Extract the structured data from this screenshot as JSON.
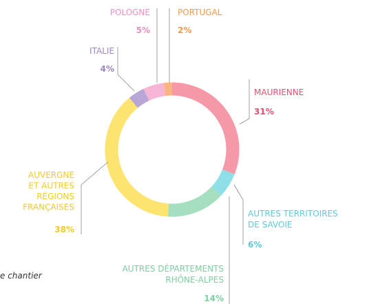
{
  "chart_data": {
    "type": "donut",
    "categories": [
      [
        "MAURIENNE"
      ],
      [
        "AUTRES TERRITOIRES",
        "DE SAVOIE"
      ],
      [
        "AUTRES DÉPARTEMENTS",
        "RHÔNE-ALPES"
      ],
      [
        "AUVERGNE",
        "ET AUTRES",
        "RÉGIONS",
        "FRANÇAISES"
      ],
      [
        "ITALIE"
      ],
      [
        "POLOGNE"
      ],
      [
        "PORTUGAL"
      ]
    ],
    "values": [
      31,
      6,
      14,
      38,
      4,
      5,
      2
    ],
    "value_labels": [
      "31%",
      "6%",
      "14%",
      "38%",
      "4%",
      "5%",
      "2%"
    ],
    "colors": [
      "#f598a8",
      "#8fdfe8",
      "#a5dfc0",
      "#fde36f",
      "#b7a6d6",
      "#f7b5d5",
      "#f9b584"
    ],
    "label_colors": [
      "#e5506e",
      "#5ccbdb",
      "#7ccfa0",
      "#f2cb2a",
      "#9a86c4",
      "#ef8fbf",
      "#f39a4d"
    ],
    "footnote": "e chantier"
  }
}
